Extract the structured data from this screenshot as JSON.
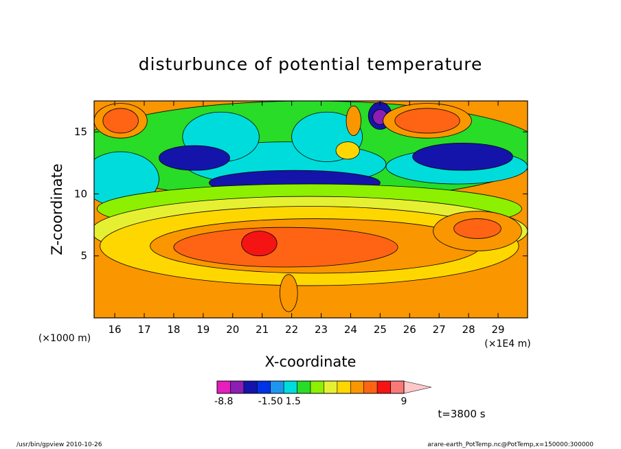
{
  "chart_data": {
    "type": "heatmap",
    "title": "disturbunce of potential temperature",
    "xlabel": "X-coordinate",
    "ylabel": "Z-coordinate",
    "x_multiplier": "(×1E4 m)",
    "y_multiplier": "(×1000 m)",
    "xlim": [
      15.3,
      30.0
    ],
    "ylim": [
      0.0,
      17.5
    ],
    "x_ticks": [
      16,
      17,
      18,
      19,
      20,
      21,
      22,
      23,
      24,
      25,
      26,
      27,
      28,
      29
    ],
    "y_ticks": [
      5,
      10,
      15
    ],
    "x_tick_labels": [
      "16",
      "17",
      "18",
      "19",
      "20",
      "21",
      "22",
      "23",
      "24",
      "25",
      "26",
      "27",
      "28",
      "29"
    ],
    "y_tick_labels": [
      "5",
      "10",
      "15"
    ],
    "colorbar": {
      "labels": [
        "-8.8",
        "-1.50",
        "1.5",
        "9"
      ],
      "colors": [
        "#e61ebe",
        "#8c1eb4",
        "#1414aa",
        "#0032e6",
        "#1e96f0",
        "#00dcdc",
        "#28dc28",
        "#8cf000",
        "#e6f032",
        "#ffd700",
        "#fa9600",
        "#ff6414",
        "#f51414",
        "#fa7878",
        "#ffc8c8"
      ]
    },
    "time_label": "t=3800 s",
    "regions": [
      {
        "level": 4,
        "color": "#28dc28",
        "cx": 22.6,
        "cy": 13.5,
        "rx": 8.0,
        "ry": 4.0
      },
      {
        "level": 3,
        "color": "#00dcdc",
        "cx": 21.8,
        "cy": 12.4,
        "rx": 3.4,
        "ry": 1.8
      },
      {
        "level": 3,
        "color": "#00dcdc",
        "cx": 16.2,
        "cy": 11.2,
        "rx": 1.3,
        "ry": 2.2
      },
      {
        "level": 3,
        "color": "#00dcdc",
        "cx": 19.6,
        "cy": 14.6,
        "rx": 1.3,
        "ry": 2.0
      },
      {
        "level": 3,
        "color": "#00dcdc",
        "cx": 23.2,
        "cy": 14.6,
        "rx": 1.2,
        "ry": 2.0
      },
      {
        "level": 3,
        "color": "#00dcdc",
        "cx": 27.6,
        "cy": 12.2,
        "rx": 2.4,
        "ry": 1.4
      },
      {
        "level": 1,
        "color": "#1414aa",
        "cx": 22.1,
        "cy": 10.9,
        "rx": 2.9,
        "ry": 1.0
      },
      {
        "level": 1,
        "color": "#1414aa",
        "cx": 18.7,
        "cy": 12.9,
        "rx": 1.2,
        "ry": 1.0
      },
      {
        "level": 1,
        "color": "#1414aa",
        "cx": 27.8,
        "cy": 13.0,
        "rx": 1.7,
        "ry": 1.1
      },
      {
        "level": 1,
        "color": "#1414aa",
        "cx": 25.0,
        "cy": 16.3,
        "rx": 0.4,
        "ry": 1.1
      },
      {
        "level": 0,
        "color": "#8c1eb4",
        "cx": 25.0,
        "cy": 16.2,
        "rx": 0.25,
        "ry": 0.6
      },
      {
        "level": 5,
        "color": "#8cf000",
        "cx": 22.6,
        "cy": 8.8,
        "rx": 7.2,
        "ry": 2.0
      },
      {
        "level": 6,
        "color": "#e6f032",
        "cx": 22.6,
        "cy": 7.0,
        "rx": 7.4,
        "ry": 2.8
      },
      {
        "level": 7,
        "color": "#ffd700",
        "cx": 22.6,
        "cy": 5.8,
        "rx": 7.1,
        "ry": 3.2
      },
      {
        "level": 8,
        "color": "#fa9600",
        "cx": 22.8,
        "cy": 5.8,
        "rx": 5.6,
        "ry": 2.2
      },
      {
        "level": 8,
        "color": "#fa9600",
        "cx": 28.3,
        "cy": 7.0,
        "rx": 1.5,
        "ry": 1.6
      },
      {
        "level": 9,
        "color": "#ff6414",
        "cx": 21.8,
        "cy": 5.7,
        "rx": 3.8,
        "ry": 1.6
      },
      {
        "level": 9,
        "color": "#ff6414",
        "cx": 28.3,
        "cy": 7.2,
        "rx": 0.8,
        "ry": 0.8
      },
      {
        "level": 10,
        "color": "#f51414",
        "cx": 20.9,
        "cy": 6.0,
        "rx": 0.6,
        "ry": 1.0
      },
      {
        "level": 8,
        "color": "#fa9600",
        "cx": 16.2,
        "cy": 15.9,
        "rx": 0.9,
        "ry": 1.4
      },
      {
        "level": 9,
        "color": "#ff6414",
        "cx": 16.2,
        "cy": 15.9,
        "rx": 0.6,
        "ry": 1.0
      },
      {
        "level": 8,
        "color": "#fa9600",
        "cx": 26.6,
        "cy": 15.9,
        "rx": 1.5,
        "ry": 1.4
      },
      {
        "level": 9,
        "color": "#ff6414",
        "cx": 26.6,
        "cy": 15.9,
        "rx": 1.1,
        "ry": 1.0
      },
      {
        "level": 8,
        "color": "#fa9600",
        "cx": 24.1,
        "cy": 15.9,
        "rx": 0.25,
        "ry": 1.2
      },
      {
        "level": 7,
        "color": "#ffd700",
        "cx": 23.9,
        "cy": 13.5,
        "rx": 0.4,
        "ry": 0.7
      },
      {
        "level": 8,
        "color": "#fa9600",
        "cx": 21.9,
        "cy": 2.0,
        "rx": 0.3,
        "ry": 1.5
      }
    ]
  },
  "footer": {
    "left": "/usr/bin/gpview   2010-10-26",
    "right": "arare-earth_PotTemp.nc@PotTemp,x=150000:300000"
  }
}
